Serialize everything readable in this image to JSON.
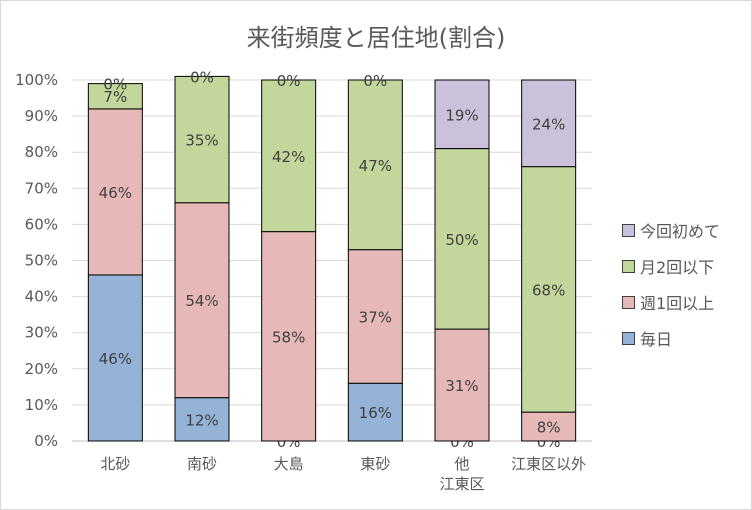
{
  "chart_data": {
    "type": "stacked-bar-100",
    "title": "来街頻度と居住地(割合)",
    "categories": [
      [
        "北砂"
      ],
      [
        "南砂"
      ],
      [
        "大島"
      ],
      [
        "東砂"
      ],
      [
        "他",
        "江東区"
      ],
      [
        "江東区以外"
      ]
    ],
    "ylim": [
      0,
      100
    ],
    "yticks": [
      "0%",
      "10%",
      "20%",
      "30%",
      "40%",
      "50%",
      "60%",
      "70%",
      "80%",
      "90%",
      "100%"
    ],
    "grid": true,
    "legend_position": "right",
    "series": [
      {
        "name": "毎日",
        "color": "#95b3d7",
        "values": [
          46,
          12,
          0,
          16,
          0,
          0
        ],
        "labels": [
          "46%",
          "12%",
          "0%",
          "16%",
          "0%",
          "0%"
        ]
      },
      {
        "name": "週1回以上",
        "color": "#e6b9b8",
        "values": [
          46,
          54,
          58,
          37,
          31,
          8
        ],
        "labels": [
          "46%",
          "54%",
          "58%",
          "37%",
          "31%",
          "8%"
        ]
      },
      {
        "name": "月2回以下",
        "color": "#c3d69b",
        "values": [
          7,
          35,
          42,
          47,
          50,
          68
        ],
        "labels": [
          "7%",
          "35%",
          "42%",
          "47%",
          "50%",
          "68%"
        ]
      },
      {
        "name": "今回初めて",
        "color": "#ccc1da",
        "values": [
          0,
          0,
          0,
          0,
          19,
          24
        ],
        "labels": [
          "0%",
          "0%",
          "0%",
          "0%",
          "19%",
          "24%"
        ]
      }
    ]
  }
}
